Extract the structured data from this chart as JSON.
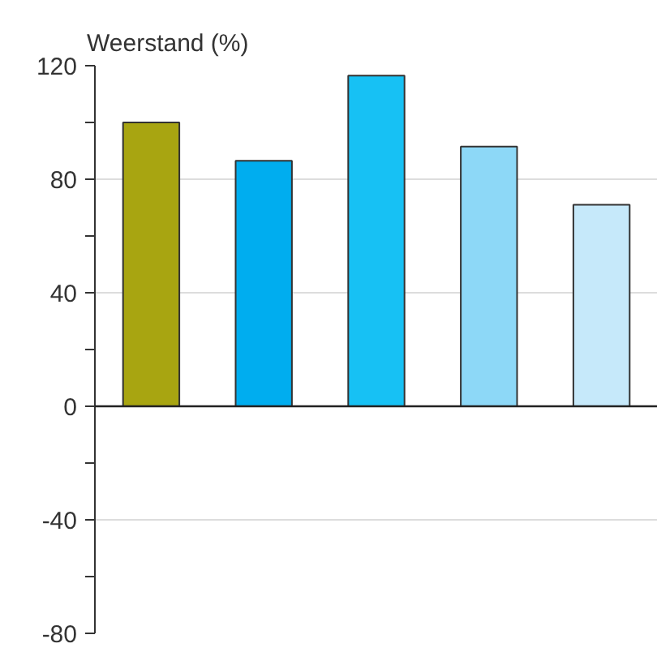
{
  "chart_data": {
    "type": "bar",
    "ylabel": "Weerstand (%)",
    "categories": [
      null,
      null,
      null,
      null,
      null
    ],
    "values": [
      100,
      86.5,
      116.5,
      91.5,
      71
    ],
    "colors": [
      "#a8a511",
      "#00adef",
      "#17c1f4",
      "#8dd8f7",
      "#c6e9fa"
    ],
    "ylim": [
      -80,
      120
    ],
    "yticks": [
      -80,
      {
        "value": -60,
        "label": null
      },
      -40,
      {
        "value": -20,
        "label": null
      },
      0,
      {
        "value": 20,
        "label": null
      },
      40,
      {
        "value": 60,
        "label": null
      },
      80,
      {
        "value": 100,
        "label": null
      },
      120
    ],
    "grid": "y",
    "ref_lines": [
      {
        "axis": "y",
        "value": 0,
        "color": "#222222"
      }
    ]
  }
}
